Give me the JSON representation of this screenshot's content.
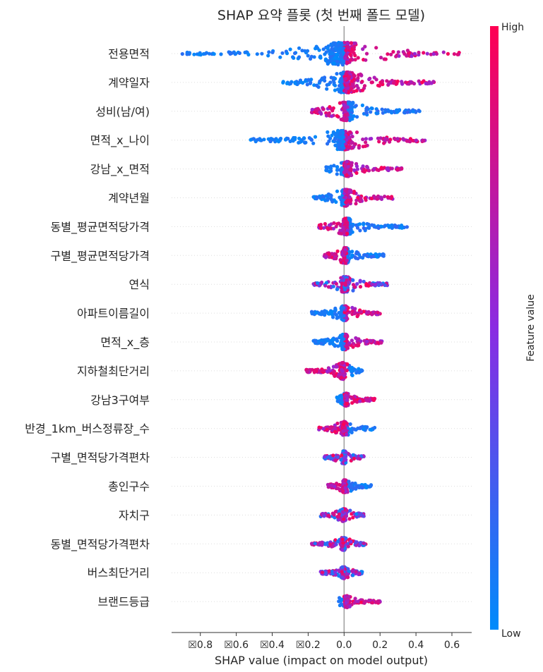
{
  "chart_data": {
    "type": "scatter",
    "subtype": "shap-beeswarm-summary",
    "title": "SHAP 요약 플롯 (첫 번째 폴드 모델)",
    "xlabel": "SHAP value (impact on model output)",
    "ylabel": "",
    "xlim": [
      -0.96,
      0.71
    ],
    "x_ticks": [
      -0.8,
      -0.6,
      -0.4,
      -0.2,
      0.0,
      0.2,
      0.4,
      0.6
    ],
    "x_tick_labels": [
      "☒0.8",
      "☒0.6",
      "☒0.4",
      "☒0.2",
      "0.0",
      "0.2",
      "0.4",
      "0.6"
    ],
    "zero_line": 0.0,
    "colorbar": {
      "label": "Feature value",
      "high_label": "High",
      "low_label": "Low",
      "high_color": "#ff0052",
      "mid_color": "#8a2be2",
      "low_color": "#008bfb"
    },
    "features": [
      {
        "name": "전용면적",
        "min": -0.9,
        "max": 0.64,
        "low_side": "left",
        "spread": 1.0
      },
      {
        "name": "계약일자",
        "min": -0.34,
        "max": 0.5,
        "low_side": "left",
        "spread": 0.9
      },
      {
        "name": "성비(남/여)",
        "min": -0.18,
        "max": 0.42,
        "low_side": "right",
        "spread": 0.8
      },
      {
        "name": "면적_x_나이",
        "min": -0.52,
        "max": 0.45,
        "low_side": "left",
        "spread": 0.85
      },
      {
        "name": "강남_x_면적",
        "min": -0.1,
        "max": 0.32,
        "low_side": "left",
        "spread": 0.6
      },
      {
        "name": "계약년월",
        "min": -0.17,
        "max": 0.27,
        "low_side": "left",
        "spread": 0.7
      },
      {
        "name": "동별_평균면적당가격",
        "min": -0.14,
        "max": 0.35,
        "low_side": "right",
        "spread": 0.7
      },
      {
        "name": "구별_평균면적당가격",
        "min": -0.11,
        "max": 0.22,
        "low_side": "right",
        "spread": 0.65
      },
      {
        "name": "연식",
        "min": -0.17,
        "max": 0.24,
        "low_side": "mixed",
        "spread": 0.65
      },
      {
        "name": "아파트이름길이",
        "min": -0.18,
        "max": 0.2,
        "low_side": "left",
        "spread": 0.6
      },
      {
        "name": "면적_x_층",
        "min": -0.17,
        "max": 0.21,
        "low_side": "left",
        "spread": 0.65
      },
      {
        "name": "지하철최단거리",
        "min": -0.21,
        "max": 0.1,
        "low_side": "right",
        "spread": 0.7
      },
      {
        "name": "강남3구여부",
        "min": -0.04,
        "max": 0.17,
        "low_side": "left",
        "spread": 0.5
      },
      {
        "name": "반경_1km_버스정류장_수",
        "min": -0.14,
        "max": 0.17,
        "low_side": "right",
        "spread": 0.55
      },
      {
        "name": "구별_면적당가격편차",
        "min": -0.11,
        "max": 0.11,
        "low_side": "mixed",
        "spread": 0.5
      },
      {
        "name": "총인구수",
        "min": -0.09,
        "max": 0.15,
        "low_side": "right",
        "spread": 0.5
      },
      {
        "name": "자치구",
        "min": -0.13,
        "max": 0.11,
        "low_side": "mixed",
        "spread": 0.5
      },
      {
        "name": "동별_면적당가격편차",
        "min": -0.18,
        "max": 0.12,
        "low_side": "mixed",
        "spread": 0.5
      },
      {
        "name": "버스최단거리",
        "min": -0.13,
        "max": 0.1,
        "low_side": "mixed",
        "spread": 0.45
      },
      {
        "name": "브랜드등급",
        "min": -0.03,
        "max": 0.2,
        "low_side": "left",
        "spread": 0.45
      }
    ]
  }
}
